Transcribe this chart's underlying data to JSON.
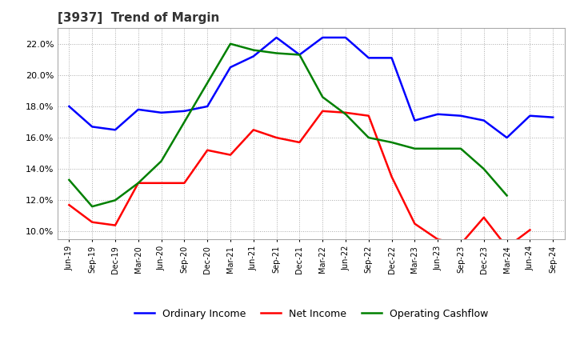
{
  "title": "[3937]  Trend of Margin",
  "x_labels": [
    "Jun-19",
    "Sep-19",
    "Dec-19",
    "Mar-20",
    "Jun-20",
    "Sep-20",
    "Dec-20",
    "Mar-21",
    "Jun-21",
    "Sep-21",
    "Dec-21",
    "Mar-22",
    "Jun-22",
    "Sep-22",
    "Dec-22",
    "Mar-23",
    "Jun-23",
    "Sep-23",
    "Dec-23",
    "Mar-24",
    "Jun-24",
    "Sep-24"
  ],
  "ordinary_income": [
    18.0,
    16.7,
    16.5,
    17.8,
    17.6,
    17.7,
    18.0,
    20.5,
    21.2,
    22.4,
    21.3,
    22.4,
    22.4,
    21.1,
    21.1,
    17.1,
    17.5,
    17.4,
    17.1,
    16.0,
    17.4,
    17.3
  ],
  "net_income": [
    11.7,
    10.6,
    10.4,
    13.1,
    13.1,
    13.1,
    15.2,
    14.9,
    16.5,
    16.0,
    15.7,
    17.7,
    17.6,
    17.4,
    13.5,
    10.5,
    9.5,
    9.2,
    10.9,
    9.0,
    10.1,
    null
  ],
  "operating_cashflow": [
    13.3,
    11.6,
    12.0,
    13.1,
    14.5,
    17.0,
    19.5,
    22.0,
    21.6,
    21.4,
    21.3,
    18.6,
    17.5,
    16.0,
    15.7,
    15.3,
    15.3,
    15.3,
    14.0,
    12.3,
    null,
    null
  ],
  "ordinary_income_color": "#0000ff",
  "net_income_color": "#ff0000",
  "operating_cashflow_color": "#008000",
  "ylim": [
    9.5,
    23.0
  ],
  "yticks": [
    10.0,
    12.0,
    14.0,
    16.0,
    18.0,
    20.0,
    22.0
  ],
  "background_color": "#ffffff",
  "grid_color": "#aaaaaa",
  "legend_labels": [
    "Ordinary Income",
    "Net Income",
    "Operating Cashflow"
  ]
}
